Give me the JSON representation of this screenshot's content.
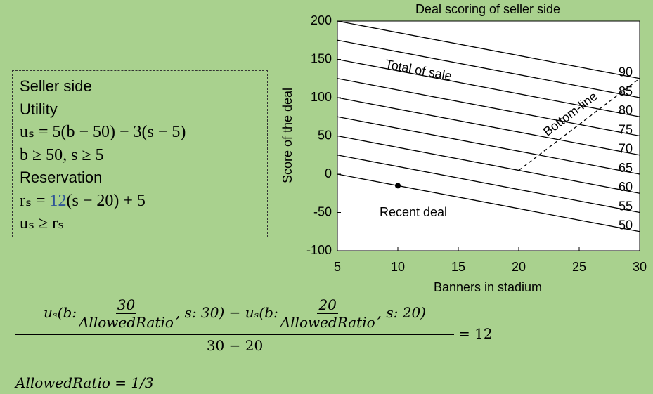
{
  "chart_data": {
    "type": "line",
    "title": "Deal scoring of seller side",
    "xlabel": "Banners in stadium",
    "ylabel": "Score of the deal",
    "xlim": [
      5,
      30
    ],
    "ylim": [
      -100,
      200
    ],
    "xticks": [
      5,
      10,
      15,
      20,
      25,
      30
    ],
    "yticks": [
      -100,
      -50,
      0,
      50,
      100,
      150,
      200
    ],
    "color": "#000000",
    "series": [
      {
        "name": "50",
        "x": [
          5,
          30
        ],
        "values": [
          0,
          -75
        ]
      },
      {
        "name": "55",
        "x": [
          5,
          30
        ],
        "values": [
          25,
          -50
        ]
      },
      {
        "name": "60",
        "x": [
          5,
          30
        ],
        "values": [
          50,
          -25
        ]
      },
      {
        "name": "65",
        "x": [
          5,
          30
        ],
        "values": [
          75,
          0
        ]
      },
      {
        "name": "70",
        "x": [
          5,
          30
        ],
        "values": [
          100,
          25
        ]
      },
      {
        "name": "75",
        "x": [
          5,
          30
        ],
        "values": [
          125,
          50
        ]
      },
      {
        "name": "80",
        "x": [
          5,
          30
        ],
        "values": [
          150,
          75
        ]
      },
      {
        "name": "85",
        "x": [
          5,
          30
        ],
        "values": [
          175,
          100
        ]
      },
      {
        "name": "90",
        "x": [
          5,
          30
        ],
        "values": [
          200,
          125
        ]
      }
    ],
    "bottom_line": {
      "name": "Bottom-line",
      "x": [
        20,
        30
      ],
      "values": [
        5,
        125
      ],
      "dashed": true
    },
    "points": {
      "name": "Recent deal",
      "x": [
        10
      ],
      "values": [
        -15
      ]
    },
    "annotations": [
      "Total of sale"
    ]
  },
  "box": {
    "lines": [
      "Seller side",
      "Utility",
      "uₛ = 5(b − 50) − 3(s − 5)",
      "b ≥ 50, s ≥ 5",
      "Reservation"
    ],
    "reservation": [
      "rₛ = ",
      "12",
      "(s − 20) + 5"
    ],
    "last": "uₛ ≥ rₛ"
  },
  "formula": {
    "t1": "uₛ(b:",
    "f1_num": "30",
    "f1_den": "AllowedRatio",
    "t2": ",  s: 30) − uₛ(b:",
    "f2_num": "20",
    "f2_den": "AllowedRatio",
    "t3": ", s:  20)",
    "denominator": "30 − 20",
    "result": "= 12",
    "note": "AllowedRatio = 1/3"
  }
}
